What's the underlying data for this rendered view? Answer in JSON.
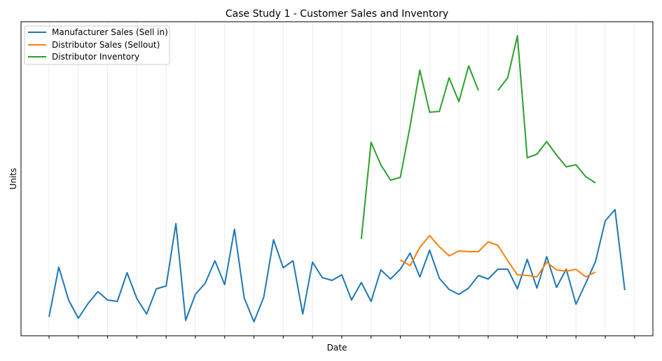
{
  "chart_data": {
    "type": "line",
    "title": "Case Study 1 - Customer Sales and Inventory",
    "xlabel": "Date",
    "ylabel": "Units",
    "x_tick_labels_visible": false,
    "y_tick_labels_visible": false,
    "grid": "vertical",
    "legend_position": "top-left",
    "series": [
      {
        "name": "Manufacturer Sales (Sell in)",
        "color": "#1f77b4",
        "values": [
          27,
          98,
          51,
          25,
          46,
          63,
          51,
          49,
          90,
          53,
          31,
          67,
          71,
          160,
          22,
          59,
          75,
          107,
          73,
          152,
          54,
          20,
          55,
          137,
          97,
          107,
          31,
          105,
          83,
          79,
          87,
          51,
          76,
          49,
          94,
          81,
          95,
          118,
          84,
          122,
          82,
          66,
          59,
          68,
          86,
          81,
          95,
          95,
          67,
          109,
          68,
          113,
          69,
          95,
          45,
          75,
          106,
          164,
          180,
          65
        ]
      },
      {
        "name": "Distributor Sales (Sellout)",
        "color": "#ff7f0e",
        "values": [
          null,
          null,
          null,
          null,
          null,
          null,
          null,
          null,
          null,
          null,
          null,
          null,
          null,
          null,
          null,
          null,
          null,
          null,
          null,
          null,
          null,
          null,
          null,
          null,
          null,
          null,
          null,
          null,
          null,
          null,
          null,
          null,
          null,
          null,
          null,
          null,
          108,
          100,
          126,
          143,
          127,
          114,
          121,
          120,
          120,
          134,
          129,
          107,
          87,
          86,
          84,
          105,
          94,
          92,
          95,
          84,
          91,
          null,
          null,
          null
        ]
      },
      {
        "name": "Distributor Inventory",
        "color": "#2ca02c",
        "values": [
          null,
          null,
          null,
          null,
          null,
          null,
          null,
          null,
          null,
          null,
          null,
          null,
          null,
          null,
          null,
          null,
          null,
          null,
          null,
          null,
          null,
          null,
          null,
          null,
          null,
          null,
          null,
          null,
          null,
          null,
          null,
          null,
          138,
          276,
          244,
          222,
          226,
          299,
          379,
          319,
          320,
          368,
          334,
          385,
          350,
          null,
          350,
          368,
          428,
          254,
          259,
          277,
          258,
          241,
          244,
          227,
          218,
          null,
          null,
          null
        ]
      }
    ]
  }
}
